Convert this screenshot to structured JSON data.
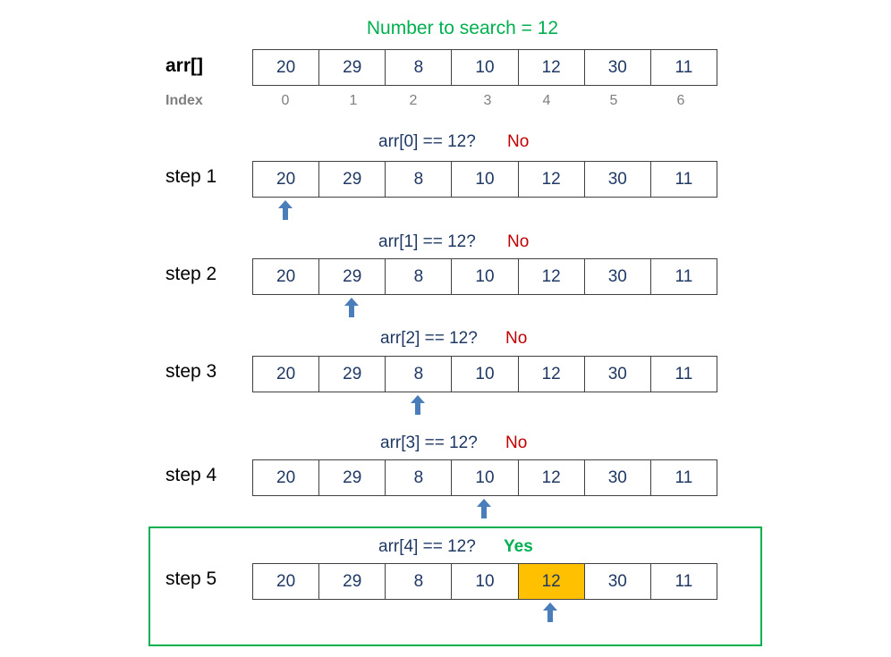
{
  "title": "Number to search = 12",
  "array_label": "arr[]",
  "index_label": "Index",
  "values": [
    "20",
    "29",
    "8",
    "10",
    "12",
    "30",
    "11"
  ],
  "indices": [
    "0",
    "1",
    "2",
    "3",
    "4",
    "5",
    "6"
  ],
  "colors": {
    "title": "#00b050",
    "found_cell": "#ffc000",
    "no": "#c00000",
    "yes": "#00b050",
    "arrow": "#4a7ebb"
  },
  "steps": [
    {
      "label": "step 1",
      "question": "arr[0] == 12?",
      "result": "No",
      "pointer_index": 0
    },
    {
      "label": "step 2",
      "question": "arr[1] == 12?",
      "result": "No",
      "pointer_index": 1
    },
    {
      "label": "step 3",
      "question": "arr[2] == 12?",
      "result": "No",
      "pointer_index": 2
    },
    {
      "label": "step 4",
      "question": "arr[3] == 12?",
      "result": "No",
      "pointer_index": 3
    },
    {
      "label": "step 5",
      "question": "arr[4] == 12?",
      "result": "Yes",
      "pointer_index": 4
    }
  ]
}
